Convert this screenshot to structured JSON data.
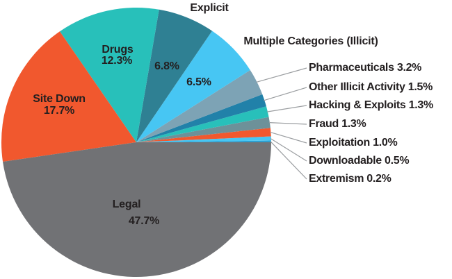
{
  "figure": {
    "background": "#ffffff",
    "text_color": "#231F20",
    "leader_line_color": "#9B9EA1"
  },
  "chart_data": {
    "type": "pie",
    "title": "",
    "unit": "percent",
    "legend_position": "none",
    "slices": [
      {
        "label": "Legal",
        "value": 47.7,
        "display": "47.7%",
        "color": "#717275",
        "label_placement": "inside"
      },
      {
        "label": "Site Down",
        "value": 17.7,
        "display": "17.7%",
        "color": "#F1582E",
        "label_placement": "inside"
      },
      {
        "label": "Drugs",
        "value": 12.3,
        "display": "12.3%",
        "color": "#28C0BA",
        "label_placement": "inside"
      },
      {
        "label": "Explicit",
        "value": 6.8,
        "display": "6.8%",
        "color": "#2F8093",
        "label_placement": "name-outside-value-inside"
      },
      {
        "label": "Multiple Categories (Illicit)",
        "value": 6.5,
        "display": "6.5%",
        "color": "#47C6F3",
        "label_placement": "name-outside-value-inside"
      },
      {
        "label": "Pharmaceuticals",
        "value": 3.2,
        "display": "3.2%",
        "color": "#7DA3B5",
        "label_placement": "callout"
      },
      {
        "label": "Other Illicit Activity",
        "value": 1.5,
        "display": "1.5%",
        "color": "#2181A9",
        "label_placement": "callout"
      },
      {
        "label": "Hacking & Exploits",
        "value": 1.3,
        "display": "1.3%",
        "color": "#28C0BA",
        "label_placement": "callout"
      },
      {
        "label": "Fraud",
        "value": 1.3,
        "display": "1.3%",
        "color": "#6D9199",
        "label_placement": "callout"
      },
      {
        "label": "Exploitation",
        "value": 1.0,
        "display": "1.0%",
        "color": "#F1582E",
        "label_placement": "callout"
      },
      {
        "label": "Downloadable",
        "value": 0.5,
        "display": "0.5%",
        "color": "#47C6F3",
        "label_placement": "callout"
      },
      {
        "label": "Extremism",
        "value": 0.2,
        "display": "0.2%",
        "color": "#2E9FD0",
        "label_placement": "callout"
      }
    ]
  }
}
